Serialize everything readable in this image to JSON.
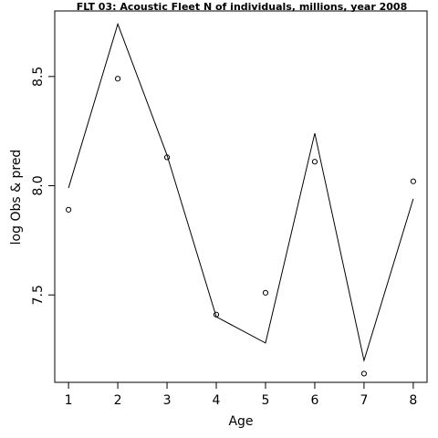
{
  "chart_data": {
    "type": "line",
    "title": "FLT 03: Acoustic Fleet  N of individuals, millions, year 2008",
    "xlabel": "Age",
    "ylabel": "log Obs & pred",
    "x": [
      1,
      2,
      3,
      4,
      5,
      6,
      7,
      8
    ],
    "series": [
      {
        "type": "line",
        "values": [
          7.99,
          8.74,
          8.14,
          7.4,
          7.28,
          8.24,
          7.2,
          7.94
        ]
      },
      {
        "type": "points",
        "values": [
          7.89,
          8.49,
          8.13,
          7.41,
          7.51,
          8.11,
          7.14,
          8.02
        ]
      }
    ],
    "xticks": [
      "1",
      "2",
      "3",
      "4",
      "5",
      "6",
      "7",
      "8"
    ],
    "yticks": [
      "7.5",
      "8.0",
      "8.5"
    ],
    "xlim": [
      0.72,
      8.28
    ],
    "ylim": [
      7.1,
      8.8
    ],
    "grid": false
  }
}
